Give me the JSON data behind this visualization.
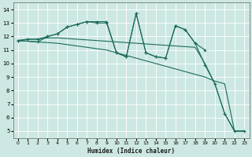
{
  "title": "",
  "xlabel": "Humidex (Indice chaleur)",
  "xlim": [
    -0.5,
    23.5
  ],
  "ylim": [
    4.5,
    14.5
  ],
  "yticks": [
    5,
    6,
    7,
    8,
    9,
    10,
    11,
    12,
    13,
    14
  ],
  "xticks": [
    0,
    1,
    2,
    3,
    4,
    5,
    6,
    7,
    8,
    9,
    10,
    11,
    12,
    13,
    14,
    15,
    16,
    17,
    18,
    19,
    20,
    21,
    22,
    23
  ],
  "bg_color": "#cde8e3",
  "grid_color": "#b8d8d2",
  "line_color": "#1a6b5a",
  "lines": [
    {
      "x": [
        0,
        1,
        2,
        3,
        4,
        5,
        6,
        7,
        8,
        9,
        10,
        11,
        12,
        13,
        14,
        15,
        16,
        17,
        18,
        19
      ],
      "y": [
        11.7,
        11.8,
        11.8,
        12.0,
        12.2,
        12.7,
        12.9,
        13.1,
        13.0,
        13.0,
        10.8,
        10.5,
        13.7,
        10.8,
        10.5,
        10.4,
        12.8,
        12.5,
        11.5,
        11.0
      ],
      "marker": true,
      "lw": 0.8
    },
    {
      "x": [
        0,
        2,
        3,
        4,
        5,
        6,
        7,
        8,
        9,
        10,
        11,
        12,
        13,
        14,
        15,
        16,
        17,
        18,
        19,
        20,
        21,
        22,
        23
      ],
      "y": [
        11.7,
        11.6,
        12.0,
        12.2,
        12.7,
        12.9,
        13.1,
        13.1,
        13.1,
        10.8,
        10.5,
        13.7,
        10.8,
        10.5,
        10.4,
        12.8,
        12.5,
        11.5,
        9.9,
        8.5,
        6.3,
        5.0,
        5.0
      ],
      "marker": true,
      "lw": 0.8
    },
    {
      "x": [
        0,
        1,
        2,
        3,
        4,
        5,
        6,
        7,
        8,
        9,
        10,
        11,
        12,
        13,
        14,
        15,
        16,
        17,
        18,
        19,
        20,
        21,
        22,
        23
      ],
      "y": [
        11.7,
        11.8,
        11.8,
        11.9,
        11.9,
        11.85,
        11.8,
        11.75,
        11.7,
        11.65,
        11.6,
        11.55,
        11.5,
        11.45,
        11.4,
        11.35,
        11.3,
        11.25,
        11.2,
        10.0,
        8.5,
        6.3,
        5.0,
        5.0
      ],
      "marker": false,
      "lw": 0.8
    },
    {
      "x": [
        0,
        1,
        2,
        3,
        4,
        5,
        6,
        7,
        8,
        9,
        10,
        11,
        12,
        13,
        14,
        15,
        16,
        17,
        18,
        19,
        20,
        21,
        22,
        23
      ],
      "y": [
        11.7,
        11.65,
        11.6,
        11.55,
        11.5,
        11.4,
        11.3,
        11.2,
        11.1,
        11.0,
        10.8,
        10.6,
        10.4,
        10.2,
        10.0,
        9.8,
        9.6,
        9.4,
        9.2,
        9.0,
        8.7,
        8.5,
        5.0,
        5.0
      ],
      "marker": false,
      "lw": 0.8
    }
  ]
}
